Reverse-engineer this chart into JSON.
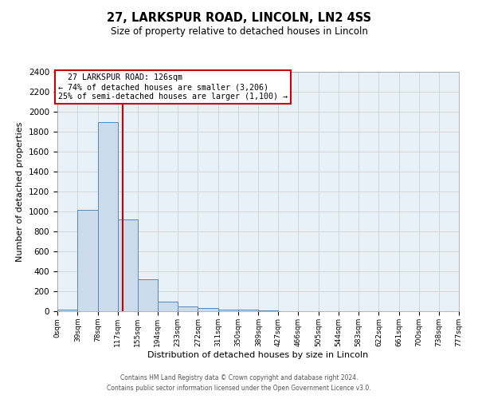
{
  "title": "27, LARKSPUR ROAD, LINCOLN, LN2 4SS",
  "subtitle": "Size of property relative to detached houses in Lincoln",
  "xlabel": "Distribution of detached houses by size in Lincoln",
  "ylabel": "Number of detached properties",
  "bin_edges": [
    0,
    39,
    78,
    117,
    155,
    194,
    233,
    272,
    311,
    350,
    389,
    427,
    466,
    505,
    544,
    583,
    622,
    661,
    700,
    738,
    777
  ],
  "bin_heights": [
    20,
    1020,
    1900,
    920,
    320,
    100,
    50,
    30,
    20,
    15,
    10,
    0,
    0,
    0,
    0,
    0,
    0,
    0,
    0,
    0
  ],
  "bar_color": "#ccdcec",
  "bar_edge_color": "#5588bb",
  "property_line_x": 126,
  "property_line_color": "#cc0000",
  "ylim": [
    0,
    2400
  ],
  "yticks": [
    0,
    200,
    400,
    600,
    800,
    1000,
    1200,
    1400,
    1600,
    1800,
    2000,
    2200,
    2400
  ],
  "xtick_labels": [
    "0sqm",
    "39sqm",
    "78sqm",
    "117sqm",
    "155sqm",
    "194sqm",
    "233sqm",
    "272sqm",
    "311sqm",
    "350sqm",
    "389sqm",
    "427sqm",
    "466sqm",
    "505sqm",
    "544sqm",
    "583sqm",
    "622sqm",
    "661sqm",
    "700sqm",
    "738sqm",
    "777sqm"
  ],
  "annotation_text_line1": "27 LARKSPUR ROAD: 126sqm",
  "annotation_text_line2": "← 74% of detached houses are smaller (3,206)",
  "annotation_text_line3": "25% of semi-detached houses are larger (1,100) →",
  "annotation_box_color": "#ffffff",
  "annotation_box_edge_color": "#cc0000",
  "grid_color": "#cccccc",
  "background_color": "#e8f0f8",
  "footer_line1": "Contains HM Land Registry data © Crown copyright and database right 2024.",
  "footer_line2": "Contains public sector information licensed under the Open Government Licence v3.0."
}
